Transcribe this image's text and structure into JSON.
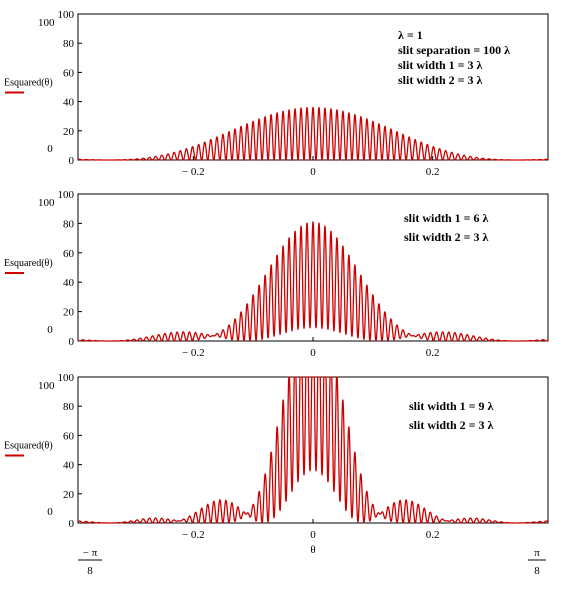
{
  "chart_data": [
    {
      "type": "line",
      "ylabel": "Esquared(θ)",
      "ylim": [
        0,
        100
      ],
      "yticks": [
        100,
        80,
        60,
        40,
        20,
        0
      ],
      "y_extra_label": "100",
      "y_zero_label": "0",
      "xlim": [
        -0.3927,
        0.3927
      ],
      "xticks": [
        -0.2,
        0,
        0.2
      ],
      "xtick_labels": [
        "− 0.2",
        "0",
        "0.2"
      ],
      "annotations": [
        "λ = 1",
        "slit separation = 100 λ",
        "slit width 1 = 3 λ",
        "slit width 2 = 3 λ"
      ],
      "model": {
        "lambda": 1,
        "slit_separation": 100,
        "slit_width_1": 3,
        "slit_width_2": 3
      },
      "series": [
        {
          "color": "#cc0000"
        }
      ],
      "grid": false
    },
    {
      "type": "line",
      "ylabel": "Esquared(θ)",
      "ylim": [
        0,
        100
      ],
      "yticks": [
        100,
        80,
        60,
        40,
        20,
        0
      ],
      "y_extra_label": "100",
      "y_zero_label": "0",
      "xlim": [
        -0.3927,
        0.3927
      ],
      "xticks": [
        -0.2,
        0,
        0.2
      ],
      "xtick_labels": [
        "− 0.2",
        "0",
        "0.2"
      ],
      "annotations": [
        "slit width 1 = 6 λ",
        "slit width 2 = 3 λ"
      ],
      "model": {
        "lambda": 1,
        "slit_separation": 100,
        "slit_width_1": 6,
        "slit_width_2": 3
      },
      "series": [
        {
          "color": "#cc0000"
        }
      ],
      "grid": false
    },
    {
      "type": "line",
      "ylabel": "Esquared(θ)",
      "ylim": [
        0,
        100
      ],
      "yticks": [
        100,
        80,
        60,
        40,
        20,
        0
      ],
      "y_extra_label": "100",
      "y_zero_label": "0",
      "xlim": [
        -0.3927,
        0.3927
      ],
      "xticks": [
        -0.2,
        0,
        0.2
      ],
      "xtick_labels": [
        "− 0.2",
        "0",
        "0.2"
      ],
      "annotations": [
        "slit width 1 = 9 λ",
        "slit width 2 = 3 λ"
      ],
      "model": {
        "lambda": 1,
        "slit_separation": 100,
        "slit_width_1": 9,
        "slit_width_2": 3
      },
      "series": [
        {
          "color": "#cc0000"
        }
      ],
      "grid": false
    }
  ],
  "x_axis": {
    "label": "θ",
    "left_limit_num": "− π",
    "left_limit_den": "8",
    "right_limit_num": "π",
    "right_limit_den": "8"
  }
}
